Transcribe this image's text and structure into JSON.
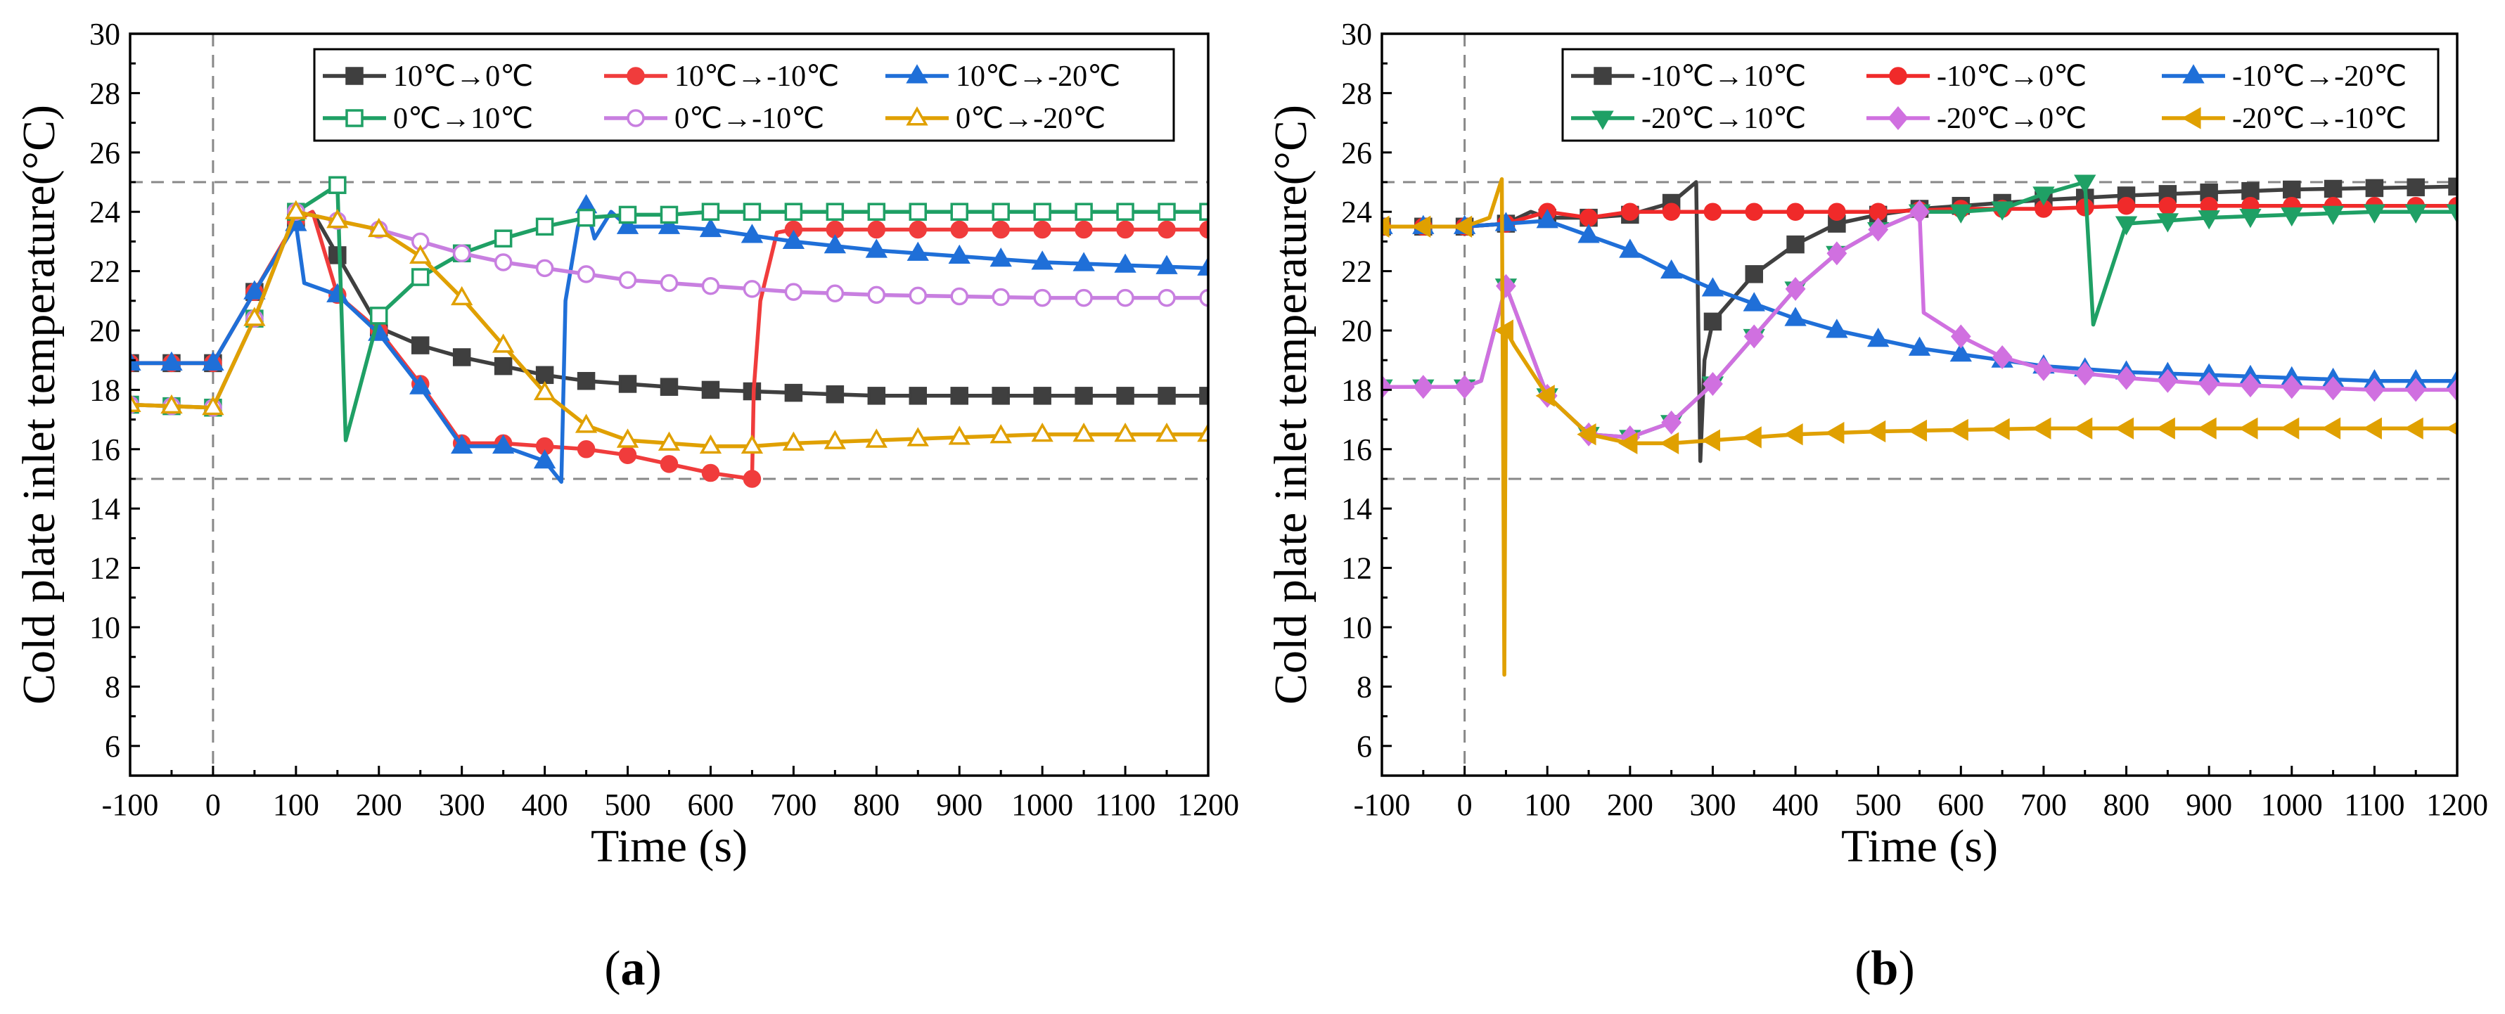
{
  "chart_data": [
    {
      "type": "line",
      "panel_label": "a",
      "title": "",
      "xlabel": "Time (s)",
      "ylabel": "Cold plate inlet temperature(°C)",
      "xlim": [
        -100,
        1200
      ],
      "ylim": [
        5,
        30
      ],
      "xticks": [
        -100,
        0,
        100,
        200,
        300,
        400,
        500,
        600,
        700,
        800,
        900,
        1000,
        1100,
        1200
      ],
      "yticks": [
        6,
        8,
        10,
        12,
        14,
        16,
        18,
        20,
        22,
        24,
        26,
        28,
        30
      ],
      "reference_lines": {
        "horizontal": [
          15,
          25
        ],
        "vertical": [
          0
        ]
      },
      "legend_position": "top-right",
      "series": [
        {
          "name": "10℃→0℃",
          "color": "#3f3f3f",
          "marker": "square-filled",
          "x": [
            -100,
            0,
            50,
            100,
            120,
            200,
            250,
            300,
            350,
            400,
            450,
            500,
            550,
            600,
            650,
            700,
            750,
            800,
            850,
            900,
            950,
            1000,
            1050,
            1100,
            1150,
            1200
          ],
          "y": [
            18.9,
            18.9,
            21.3,
            23.7,
            24.0,
            20.1,
            19.5,
            19.1,
            18.8,
            18.5,
            18.3,
            18.2,
            18.1,
            18.0,
            17.95,
            17.9,
            17.85,
            17.8,
            17.8,
            17.8,
            17.8,
            17.8,
            17.8,
            17.8,
            17.8,
            17.8
          ],
          "marker_x": [
            -100,
            -50,
            0,
            50,
            100,
            150,
            200,
            250,
            300,
            350,
            400,
            450,
            500,
            550,
            600,
            650,
            700,
            750,
            800,
            850,
            900,
            950,
            1000,
            1050,
            1100,
            1150,
            1200
          ]
        },
        {
          "name": "10℃→-10℃",
          "color": "#f03c3c",
          "marker": "circle-filled",
          "x": [
            -100,
            0,
            50,
            100,
            120,
            150,
            200,
            250,
            300,
            350,
            400,
            450,
            500,
            550,
            600,
            650,
            652,
            660,
            680,
            700,
            750,
            800,
            900,
            1000,
            1100,
            1200
          ],
          "y": [
            18.9,
            18.9,
            21.3,
            23.7,
            24.0,
            21.2,
            20.0,
            18.2,
            16.2,
            16.2,
            16.1,
            16.0,
            15.8,
            15.5,
            15.2,
            15.0,
            18.0,
            21.0,
            23.3,
            23.4,
            23.4,
            23.4,
            23.4,
            23.4,
            23.4,
            23.4
          ],
          "marker_x": [
            -100,
            -50,
            0,
            50,
            100,
            150,
            200,
            250,
            300,
            350,
            400,
            450,
            500,
            550,
            600,
            650,
            700,
            750,
            800,
            850,
            900,
            950,
            1000,
            1050,
            1100,
            1150,
            1200
          ]
        },
        {
          "name": "10℃→-20℃",
          "color": "#1f6fd8",
          "marker": "triangle-filled",
          "x": [
            -100,
            0,
            50,
            100,
            110,
            150,
            200,
            250,
            300,
            350,
            400,
            420,
            425,
            440,
            450,
            460,
            480,
            500,
            550,
            600,
            700,
            800,
            900,
            1000,
            1100,
            1200
          ],
          "y": [
            18.9,
            18.9,
            21.3,
            23.6,
            21.6,
            21.2,
            19.9,
            18.1,
            16.1,
            16.1,
            15.6,
            14.9,
            21.0,
            23.5,
            24.2,
            23.1,
            24.0,
            23.5,
            23.5,
            23.4,
            23.0,
            22.7,
            22.5,
            22.3,
            22.2,
            22.1
          ],
          "marker_x": [
            -100,
            -50,
            0,
            50,
            100,
            150,
            200,
            250,
            300,
            350,
            400,
            450,
            500,
            550,
            600,
            650,
            700,
            750,
            800,
            850,
            900,
            950,
            1000,
            1050,
            1100,
            1150,
            1200
          ]
        },
        {
          "name": "0℃→10℃",
          "color": "#1fa065",
          "marker": "square-open",
          "x": [
            -100,
            0,
            50,
            100,
            150,
            160,
            200,
            250,
            300,
            350,
            400,
            450,
            500,
            550,
            600,
            650,
            700,
            800,
            900,
            1000,
            1100,
            1200
          ],
          "y": [
            17.5,
            17.4,
            20.4,
            24.0,
            24.9,
            16.3,
            20.5,
            21.8,
            22.6,
            23.1,
            23.5,
            23.8,
            23.9,
            23.9,
            24.0,
            24.0,
            24.0,
            24.0,
            24.0,
            24.0,
            24.0,
            24.0
          ],
          "marker_x": [
            -100,
            -50,
            0,
            50,
            100,
            150,
            200,
            250,
            300,
            350,
            400,
            450,
            500,
            550,
            600,
            650,
            700,
            750,
            800,
            850,
            900,
            950,
            1000,
            1050,
            1100,
            1150,
            1200
          ]
        },
        {
          "name": "0℃→-10℃",
          "color": "#c87fe0",
          "marker": "circle-open",
          "x": [
            -100,
            0,
            50,
            100,
            150,
            200,
            250,
            300,
            350,
            400,
            450,
            500,
            550,
            600,
            650,
            700,
            800,
            900,
            1000,
            1100,
            1200
          ],
          "y": [
            17.5,
            17.4,
            20.4,
            24.0,
            23.7,
            23.4,
            23.0,
            22.6,
            22.3,
            22.1,
            21.9,
            21.7,
            21.6,
            21.5,
            21.4,
            21.3,
            21.2,
            21.15,
            21.1,
            21.1,
            21.1
          ],
          "marker_x": [
            -100,
            -50,
            0,
            50,
            100,
            150,
            200,
            250,
            300,
            350,
            400,
            450,
            500,
            550,
            600,
            650,
            700,
            750,
            800,
            850,
            900,
            950,
            1000,
            1050,
            1100,
            1150,
            1200
          ]
        },
        {
          "name": "0℃→-20℃",
          "color": "#e0a000",
          "marker": "triangle-open",
          "x": [
            -100,
            0,
            50,
            100,
            150,
            200,
            250,
            300,
            350,
            400,
            450,
            500,
            550,
            600,
            650,
            700,
            800,
            900,
            1000,
            1100,
            1200
          ],
          "y": [
            17.5,
            17.4,
            20.4,
            24.0,
            23.7,
            23.4,
            22.5,
            21.1,
            19.5,
            17.9,
            16.8,
            16.3,
            16.2,
            16.1,
            16.1,
            16.2,
            16.3,
            16.4,
            16.5,
            16.5,
            16.5
          ],
          "marker_x": [
            -100,
            -50,
            0,
            50,
            100,
            150,
            200,
            250,
            300,
            350,
            400,
            450,
            500,
            550,
            600,
            650,
            700,
            750,
            800,
            850,
            900,
            950,
            1000,
            1050,
            1100,
            1150,
            1200
          ]
        }
      ]
    },
    {
      "type": "line",
      "panel_label": "b",
      "title": "",
      "xlabel": "Time (s)",
      "ylabel": "Cold plate inlet temperature(°C)",
      "xlim": [
        -100,
        1200
      ],
      "ylim": [
        5,
        30
      ],
      "xticks": [
        -100,
        0,
        100,
        200,
        300,
        400,
        500,
        600,
        700,
        800,
        900,
        1000,
        1100,
        1200
      ],
      "yticks": [
        6,
        8,
        10,
        12,
        14,
        16,
        18,
        20,
        22,
        24,
        26,
        28,
        30
      ],
      "reference_lines": {
        "horizontal": [
          15,
          25
        ],
        "vertical": [
          0
        ]
      },
      "legend_position": "top-right",
      "series": [
        {
          "name": "-10℃→10℃",
          "color": "#404040",
          "marker": "square-filled",
          "x": [
            -100,
            0,
            50,
            80,
            100,
            150,
            200,
            250,
            280,
            285,
            290,
            300,
            350,
            400,
            450,
            500,
            550,
            600,
            700,
            800,
            900,
            1000,
            1100,
            1200
          ],
          "y": [
            23.5,
            23.5,
            23.6,
            24.0,
            23.8,
            23.8,
            23.9,
            24.3,
            25.0,
            15.6,
            19.0,
            20.3,
            21.9,
            22.9,
            23.6,
            23.9,
            24.1,
            24.2,
            24.4,
            24.55,
            24.65,
            24.75,
            24.8,
            24.85
          ],
          "marker_x": [
            -100,
            -50,
            0,
            50,
            100,
            150,
            200,
            250,
            300,
            350,
            400,
            450,
            500,
            550,
            600,
            650,
            700,
            750,
            800,
            850,
            900,
            950,
            1000,
            1050,
            1100,
            1150,
            1200
          ]
        },
        {
          "name": "-10℃→0℃",
          "color": "#f02a2a",
          "marker": "circle-filled",
          "x": [
            -100,
            0,
            50,
            100,
            150,
            200,
            300,
            400,
            500,
            600,
            700,
            800,
            900,
            1000,
            1100,
            1200
          ],
          "y": [
            23.5,
            23.5,
            23.6,
            24.0,
            23.8,
            24.0,
            24.0,
            24.0,
            24.0,
            24.1,
            24.1,
            24.2,
            24.2,
            24.2,
            24.2,
            24.2
          ],
          "marker_x": [
            -100,
            -50,
            0,
            50,
            100,
            150,
            200,
            250,
            300,
            350,
            400,
            450,
            500,
            550,
            600,
            650,
            700,
            750,
            800,
            850,
            900,
            950,
            1000,
            1050,
            1100,
            1150,
            1200
          ]
        },
        {
          "name": "-10℃→-20℃",
          "color": "#1f6fd8",
          "marker": "triangle-filled",
          "x": [
            -100,
            0,
            50,
            100,
            150,
            200,
            250,
            300,
            350,
            400,
            450,
            500,
            550,
            600,
            700,
            800,
            900,
            1000,
            1100,
            1200
          ],
          "y": [
            23.5,
            23.5,
            23.6,
            23.7,
            23.2,
            22.7,
            22.0,
            21.4,
            20.9,
            20.4,
            20.0,
            19.7,
            19.4,
            19.2,
            18.8,
            18.6,
            18.5,
            18.4,
            18.3,
            18.3
          ],
          "marker_x": [
            -100,
            -50,
            0,
            50,
            100,
            150,
            200,
            250,
            300,
            350,
            400,
            450,
            500,
            550,
            600,
            650,
            700,
            750,
            800,
            850,
            900,
            950,
            1000,
            1050,
            1100,
            1150,
            1200
          ]
        },
        {
          "name": "-20℃→10℃",
          "color": "#1fa065",
          "marker": "triangle-down-filled",
          "x": [
            -100,
            0,
            20,
            50,
            100,
            150,
            200,
            250,
            300,
            350,
            400,
            450,
            500,
            550,
            600,
            650,
            700,
            750,
            760,
            800,
            900,
            1000,
            1100,
            1200
          ],
          "y": [
            18.1,
            18.1,
            18.3,
            21.5,
            17.8,
            16.5,
            16.4,
            16.9,
            18.2,
            19.8,
            21.4,
            22.6,
            23.4,
            24.0,
            24.0,
            24.1,
            24.6,
            25.0,
            20.2,
            23.6,
            23.8,
            23.9,
            24.0,
            24.0
          ],
          "marker_x": [
            -100,
            -50,
            0,
            50,
            100,
            150,
            200,
            250,
            300,
            350,
            400,
            450,
            500,
            550,
            600,
            650,
            700,
            750,
            800,
            850,
            900,
            950,
            1000,
            1050,
            1100,
            1150,
            1200
          ]
        },
        {
          "name": "-20℃→0℃",
          "color": "#d070e0",
          "marker": "diamond-filled",
          "x": [
            -100,
            0,
            20,
            50,
            100,
            150,
            200,
            250,
            300,
            350,
            400,
            450,
            500,
            550,
            555,
            600,
            650,
            700,
            800,
            900,
            1000,
            1100,
            1200
          ],
          "y": [
            18.1,
            18.1,
            18.3,
            21.5,
            17.8,
            16.5,
            16.4,
            16.9,
            18.2,
            19.8,
            21.4,
            22.6,
            23.4,
            24.0,
            20.6,
            19.8,
            19.1,
            18.7,
            18.4,
            18.2,
            18.1,
            18.0,
            18.0
          ],
          "marker_x": [
            -100,
            -50,
            0,
            50,
            100,
            150,
            200,
            250,
            300,
            350,
            400,
            450,
            500,
            550,
            600,
            650,
            700,
            750,
            800,
            850,
            900,
            950,
            1000,
            1050,
            1100,
            1150,
            1200
          ]
        },
        {
          "name": "-20℃→-10℃",
          "color": "#e0a000",
          "marker": "triangle-left-filled",
          "x": [
            -100,
            0,
            30,
            45,
            48,
            50,
            60,
            100,
            150,
            200,
            250,
            300,
            350,
            400,
            500,
            600,
            700,
            800,
            900,
            1000,
            1100,
            1200
          ],
          "y": [
            23.5,
            23.5,
            23.8,
            25.1,
            8.4,
            20.0,
            19.5,
            17.8,
            16.5,
            16.2,
            16.2,
            16.3,
            16.4,
            16.5,
            16.6,
            16.65,
            16.7,
            16.7,
            16.7,
            16.7,
            16.7,
            16.7
          ],
          "marker_x": [
            -100,
            -50,
            0,
            50,
            100,
            150,
            200,
            250,
            300,
            350,
            400,
            450,
            500,
            550,
            600,
            650,
            700,
            750,
            800,
            850,
            900,
            950,
            1000,
            1050,
            1100,
            1150,
            1200
          ]
        }
      ]
    }
  ]
}
